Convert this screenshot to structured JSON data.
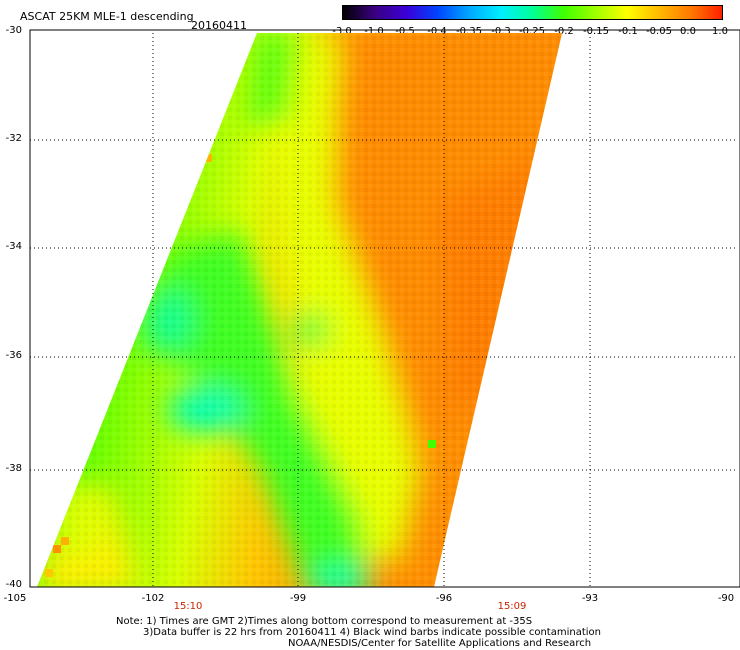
{
  "title": "ASCAT 25KM MLE-1 descending",
  "date": "20160411",
  "colorbar": {
    "labels": [
      "-3.0",
      "-1.0",
      "-0.5",
      "-0.4",
      "-0.35",
      "-0.3",
      "-0.25",
      "-0.2",
      "-0.15",
      "-0.1",
      "-0.05",
      "0.0",
      "1.0"
    ],
    "colors": [
      "#000000",
      "#3a0080",
      "#3b00d8",
      "#0044ff",
      "#00a8ff",
      "#00f0ff",
      "#00ff96",
      "#40ff00",
      "#a0ff00",
      "#ffff00",
      "#ffbb00",
      "#ff7a00",
      "#ff2000"
    ]
  },
  "axes": {
    "y_labels": [
      "-30",
      "-32",
      "-34",
      "-36",
      "-38",
      "-40"
    ],
    "x_labels": [
      "-105",
      "-102",
      "-99",
      "-96",
      "-93",
      "-90"
    ]
  },
  "times": [
    "15:10",
    "15:09"
  ],
  "notes": {
    "line1": "Note: 1) Times are GMT 2)Times along bottom correspond to measurement at -35S",
    "line2": "3)Data buffer is 22 hrs from 20160411 4) Black wind barbs indicate possible contamination",
    "line3": "NOAA/NESDIS/Center for Satellite Applications and Research"
  }
}
